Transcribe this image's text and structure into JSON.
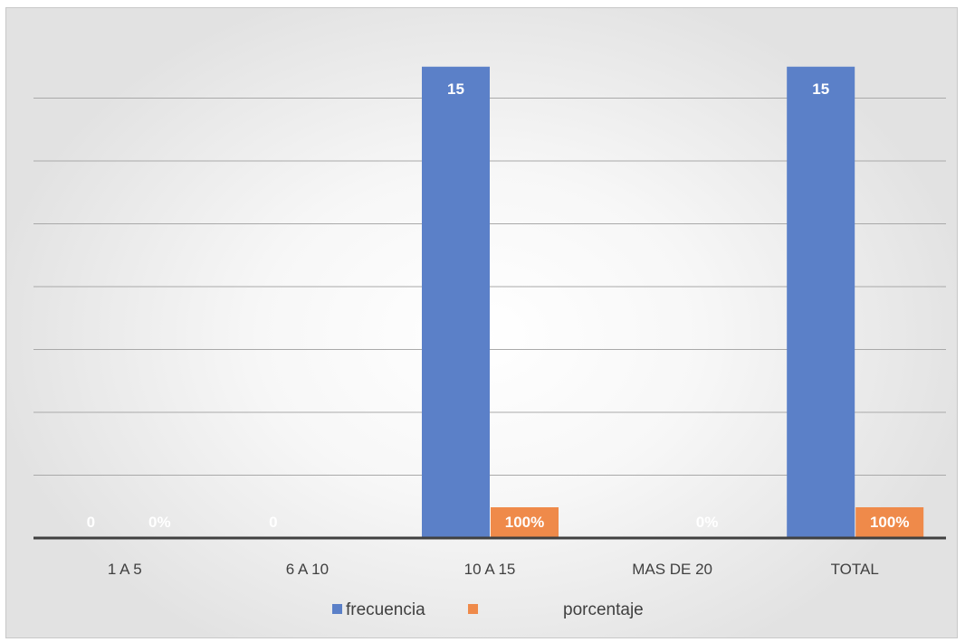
{
  "chart_data": {
    "type": "bar",
    "title": "",
    "xlabel": "",
    "ylabel": "",
    "categories": [
      "1 A 5",
      "6 A 10",
      "10 A 15",
      "MAS DE 20",
      "TOTAL"
    ],
    "series": [
      {
        "name": "frecuencia",
        "values": [
          0,
          0,
          15,
          0,
          15
        ],
        "labels": [
          "0",
          "0",
          "15",
          "",
          "15"
        ],
        "color": "#5b80c8"
      },
      {
        "name": "porcentaje",
        "values": [
          0,
          0,
          1,
          0,
          1
        ],
        "labels": [
          "0%",
          "",
          "100%",
          "0%",
          "100%"
        ],
        "color": "#ef8a4a"
      }
    ],
    "ylim": [
      0,
      16
    ],
    "grid": true,
    "legend_position": "bottom"
  }
}
